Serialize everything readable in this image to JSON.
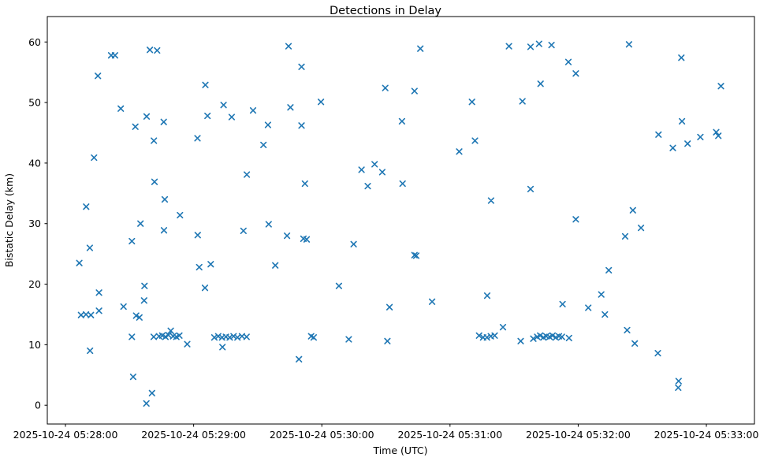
{
  "chart_data": {
    "type": "scatter",
    "title": "Detections in Delay",
    "xlabel": "Time (UTC)",
    "ylabel": "Bistatic Delay (km)",
    "legend": null,
    "grid": false,
    "marker": "x",
    "marker_color": "#1f77b4",
    "time_base": "2025-10-24 05:28:00",
    "x_unit": "seconds after time_base",
    "xlim_seconds": [
      -8.5,
      322.5
    ],
    "ylim": [
      -3.1,
      64.2
    ],
    "y_ticks": [
      0,
      10,
      20,
      30,
      40,
      50,
      60
    ],
    "x_ticks": [
      {
        "t": 0,
        "label": "2025-10-24 05:28:00"
      },
      {
        "t": 60,
        "label": "2025-10-24 05:29:00"
      },
      {
        "t": 120,
        "label": "2025-10-24 05:30:00"
      },
      {
        "t": 180,
        "label": "2025-10-24 05:31:00"
      },
      {
        "t": 240,
        "label": "2025-10-24 05:32:00"
      },
      {
        "t": 300,
        "label": "2025-10-24 05:33:00"
      }
    ],
    "points": [
      [
        21.4,
        57.8
      ],
      [
        23.2,
        57.8
      ],
      [
        39.5,
        58.7
      ],
      [
        42.9,
        58.6
      ],
      [
        15.2,
        54.4
      ],
      [
        65.5,
        52.9
      ],
      [
        25.9,
        49.0
      ],
      [
        74.0,
        49.6
      ],
      [
        38.0,
        47.7
      ],
      [
        46.0,
        46.8
      ],
      [
        66.5,
        47.8
      ],
      [
        32.7,
        46.0
      ],
      [
        41.4,
        43.7
      ],
      [
        61.8,
        44.1
      ],
      [
        104.4,
        59.3
      ],
      [
        110.5,
        55.9
      ],
      [
        149.7,
        52.4
      ],
      [
        119.6,
        50.1
      ],
      [
        105.3,
        49.2
      ],
      [
        87.8,
        48.7
      ],
      [
        77.8,
        47.6
      ],
      [
        94.8,
        46.3
      ],
      [
        110.5,
        46.2
      ],
      [
        92.7,
        43.0
      ],
      [
        166.1,
        58.9
      ],
      [
        207.6,
        59.3
      ],
      [
        217.7,
        59.2
      ],
      [
        221.7,
        59.7
      ],
      [
        227.5,
        59.5
      ],
      [
        235.4,
        56.7
      ],
      [
        238.9,
        54.8
      ],
      [
        222.4,
        53.1
      ],
      [
        163.4,
        51.9
      ],
      [
        190.3,
        50.1
      ],
      [
        213.9,
        50.2
      ],
      [
        157.5,
        46.9
      ],
      [
        191.7,
        43.7
      ],
      [
        184.3,
        41.9
      ],
      [
        263.8,
        59.6
      ],
      [
        288.3,
        57.4
      ],
      [
        306.8,
        52.7
      ],
      [
        288.6,
        46.9
      ],
      [
        277.6,
        44.7
      ],
      [
        291.2,
        43.2
      ],
      [
        297.2,
        44.3
      ],
      [
        304.6,
        45.1
      ],
      [
        305.6,
        44.5
      ],
      [
        284.3,
        42.5
      ],
      [
        13.4,
        40.9
      ],
      [
        41.7,
        36.9
      ],
      [
        9.7,
        32.8
      ],
      [
        46.5,
        34.0
      ],
      [
        53.6,
        31.4
      ],
      [
        35.1,
        30.0
      ],
      [
        46.1,
        28.9
      ],
      [
        31.1,
        27.1
      ],
      [
        61.9,
        28.1
      ],
      [
        11.4,
        26.0
      ],
      [
        6.5,
        23.5
      ],
      [
        62.6,
        22.8
      ],
      [
        68.0,
        23.3
      ],
      [
        37.0,
        19.7
      ],
      [
        65.3,
        19.4
      ],
      [
        84.9,
        38.1
      ],
      [
        112.1,
        36.6
      ],
      [
        138.6,
        38.9
      ],
      [
        144.7,
        39.8
      ],
      [
        148.3,
        38.5
      ],
      [
        141.5,
        36.2
      ],
      [
        157.8,
        36.6
      ],
      [
        95.1,
        29.9
      ],
      [
        83.3,
        28.8
      ],
      [
        103.7,
        28.0
      ],
      [
        111.4,
        27.5
      ],
      [
        112.9,
        27.4
      ],
      [
        134.9,
        26.6
      ],
      [
        98.2,
        23.1
      ],
      [
        128.0,
        19.7
      ],
      [
        217.7,
        35.7
      ],
      [
        199.2,
        33.8
      ],
      [
        238.9,
        30.7
      ],
      [
        163.4,
        24.8
      ],
      [
        164.2,
        24.7
      ],
      [
        265.6,
        32.2
      ],
      [
        269.4,
        29.3
      ],
      [
        262.0,
        27.9
      ],
      [
        254.3,
        22.3
      ],
      [
        15.7,
        18.6
      ],
      [
        36.8,
        17.3
      ],
      [
        15.7,
        15.6
      ],
      [
        27.2,
        16.3
      ],
      [
        7.3,
        14.9
      ],
      [
        9.6,
        15.0
      ],
      [
        11.9,
        14.9
      ],
      [
        33.1,
        14.8
      ],
      [
        34.6,
        14.5
      ],
      [
        31.1,
        11.3
      ],
      [
        41.3,
        11.3
      ],
      [
        43.8,
        11.4
      ],
      [
        45.3,
        11.5
      ],
      [
        46.8,
        11.3
      ],
      [
        48.2,
        11.6
      ],
      [
        49.3,
        12.3
      ],
      [
        50.4,
        11.4
      ],
      [
        51.9,
        11.3
      ],
      [
        53.3,
        11.5
      ],
      [
        57.0,
        10.1
      ],
      [
        11.5,
        9.0
      ],
      [
        31.7,
        4.7
      ],
      [
        40.5,
        2.0
      ],
      [
        37.9,
        0.3
      ],
      [
        69.7,
        11.2
      ],
      [
        71.5,
        11.4
      ],
      [
        73.3,
        11.2
      ],
      [
        75.1,
        11.3
      ],
      [
        76.9,
        11.2
      ],
      [
        78.7,
        11.4
      ],
      [
        80.5,
        11.2
      ],
      [
        82.6,
        11.4
      ],
      [
        84.8,
        11.3
      ],
      [
        73.5,
        9.6
      ],
      [
        151.7,
        16.2
      ],
      [
        115.0,
        11.4
      ],
      [
        116.2,
        11.2
      ],
      [
        132.6,
        10.9
      ],
      [
        150.7,
        10.6
      ],
      [
        109.3,
        7.6
      ],
      [
        171.6,
        17.1
      ],
      [
        197.4,
        18.1
      ],
      [
        232.7,
        16.7
      ],
      [
        204.8,
        12.9
      ],
      [
        193.6,
        11.5
      ],
      [
        195.5,
        11.2
      ],
      [
        197.3,
        11.2
      ],
      [
        199.1,
        11.4
      ],
      [
        200.9,
        11.5
      ],
      [
        213.1,
        10.6
      ],
      [
        219.0,
        11.0
      ],
      [
        220.8,
        11.3
      ],
      [
        222.2,
        11.5
      ],
      [
        223.7,
        11.2
      ],
      [
        225.1,
        11.4
      ],
      [
        226.6,
        11.3
      ],
      [
        228.0,
        11.5
      ],
      [
        229.5,
        11.2
      ],
      [
        231.0,
        11.4
      ],
      [
        232.4,
        11.3
      ],
      [
        235.7,
        11.1
      ],
      [
        250.8,
        18.3
      ],
      [
        244.7,
        16.1
      ],
      [
        252.5,
        15.0
      ],
      [
        262.9,
        12.4
      ],
      [
        266.5,
        10.2
      ],
      [
        277.3,
        8.6
      ],
      [
        287.0,
        4.0
      ],
      [
        286.8,
        2.9
      ]
    ]
  }
}
